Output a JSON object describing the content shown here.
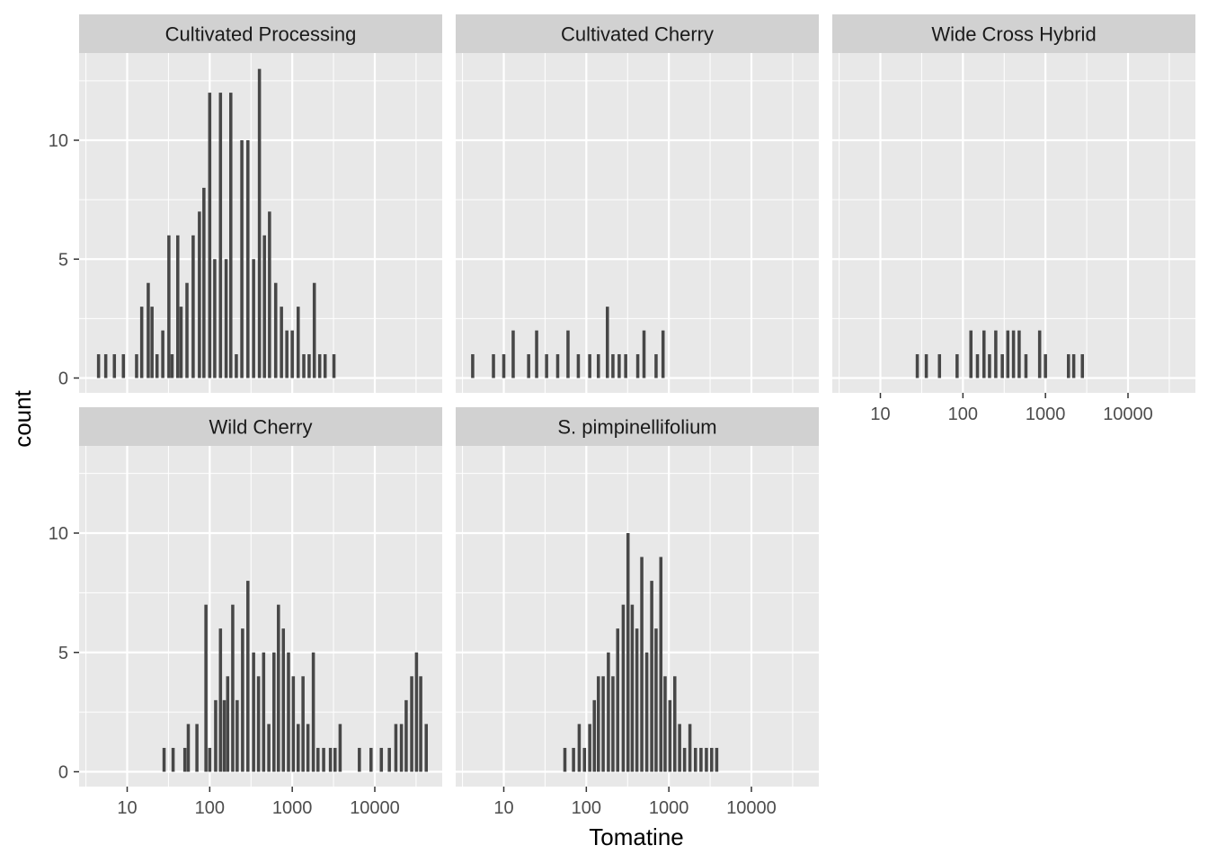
{
  "chart_data": {
    "type": "histogram",
    "layout": "facet_wrap",
    "xlabel": "Tomatine",
    "ylabel": "count",
    "x_scale": "log10",
    "x_ticks": [
      10,
      100,
      1000,
      10000
    ],
    "x_tick_labels": [
      "10",
      "100",
      "1000",
      "10000"
    ],
    "y_ticks": [
      0,
      5,
      10
    ],
    "y_tick_labels": [
      "0",
      "5",
      "10"
    ],
    "ylim": [
      0,
      13.5
    ],
    "bar_color": "#474747",
    "panel_background": "#e8e8e8",
    "strip_background": "#d1d1d1",
    "grid_color": "#ffffff",
    "panels": [
      {
        "name": "Cultivated Processing",
        "bins": [
          {
            "x": 4.5,
            "count": 1
          },
          {
            "x": 5.5,
            "count": 1
          },
          {
            "x": 7,
            "count": 1
          },
          {
            "x": 9,
            "count": 1
          },
          {
            "x": 13,
            "count": 1
          },
          {
            "x": 15,
            "count": 3
          },
          {
            "x": 18,
            "count": 4
          },
          {
            "x": 20,
            "count": 3
          },
          {
            "x": 23,
            "count": 1
          },
          {
            "x": 27,
            "count": 2
          },
          {
            "x": 32,
            "count": 6
          },
          {
            "x": 35,
            "count": 1
          },
          {
            "x": 41,
            "count": 6
          },
          {
            "x": 45,
            "count": 3
          },
          {
            "x": 53,
            "count": 4
          },
          {
            "x": 63,
            "count": 6
          },
          {
            "x": 75,
            "count": 7
          },
          {
            "x": 85,
            "count": 8
          },
          {
            "x": 100,
            "count": 12
          },
          {
            "x": 115,
            "count": 5
          },
          {
            "x": 135,
            "count": 12
          },
          {
            "x": 158,
            "count": 5
          },
          {
            "x": 180,
            "count": 12
          },
          {
            "x": 210,
            "count": 1
          },
          {
            "x": 245,
            "count": 10
          },
          {
            "x": 290,
            "count": 10
          },
          {
            "x": 340,
            "count": 5
          },
          {
            "x": 400,
            "count": 13
          },
          {
            "x": 460,
            "count": 6
          },
          {
            "x": 530,
            "count": 7
          },
          {
            "x": 630,
            "count": 4
          },
          {
            "x": 740,
            "count": 3
          },
          {
            "x": 860,
            "count": 2
          },
          {
            "x": 1000,
            "count": 2
          },
          {
            "x": 1180,
            "count": 3
          },
          {
            "x": 1380,
            "count": 1
          },
          {
            "x": 1600,
            "count": 1
          },
          {
            "x": 1850,
            "count": 4
          },
          {
            "x": 2150,
            "count": 1
          },
          {
            "x": 2500,
            "count": 1
          },
          {
            "x": 3200,
            "count": 1
          }
        ]
      },
      {
        "name": "Cultivated Cherry",
        "bins": [
          {
            "x": 4.2,
            "count": 1
          },
          {
            "x": 7.5,
            "count": 1
          },
          {
            "x": 10,
            "count": 1
          },
          {
            "x": 13,
            "count": 2
          },
          {
            "x": 20,
            "count": 1
          },
          {
            "x": 25,
            "count": 2
          },
          {
            "x": 33,
            "count": 1
          },
          {
            "x": 45,
            "count": 1
          },
          {
            "x": 60,
            "count": 2
          },
          {
            "x": 80,
            "count": 1
          },
          {
            "x": 110,
            "count": 1
          },
          {
            "x": 140,
            "count": 1
          },
          {
            "x": 180,
            "count": 3
          },
          {
            "x": 210,
            "count": 1
          },
          {
            "x": 250,
            "count": 1
          },
          {
            "x": 300,
            "count": 1
          },
          {
            "x": 420,
            "count": 1
          },
          {
            "x": 500,
            "count": 2
          },
          {
            "x": 700,
            "count": 1
          },
          {
            "x": 850,
            "count": 2
          }
        ]
      },
      {
        "name": "Wide Cross Hybrid",
        "bins": [
          {
            "x": 28,
            "count": 1
          },
          {
            "x": 36,
            "count": 1
          },
          {
            "x": 52,
            "count": 1
          },
          {
            "x": 85,
            "count": 1
          },
          {
            "x": 125,
            "count": 2
          },
          {
            "x": 150,
            "count": 1
          },
          {
            "x": 180,
            "count": 2
          },
          {
            "x": 210,
            "count": 1
          },
          {
            "x": 250,
            "count": 2
          },
          {
            "x": 300,
            "count": 1
          },
          {
            "x": 350,
            "count": 2
          },
          {
            "x": 410,
            "count": 2
          },
          {
            "x": 480,
            "count": 2
          },
          {
            "x": 580,
            "count": 1
          },
          {
            "x": 850,
            "count": 2
          },
          {
            "x": 1000,
            "count": 1
          },
          {
            "x": 1900,
            "count": 1
          },
          {
            "x": 2200,
            "count": 1
          },
          {
            "x": 2800,
            "count": 1
          }
        ]
      },
      {
        "name": "Wild Cherry",
        "bins": [
          {
            "x": 28,
            "count": 1
          },
          {
            "x": 36,
            "count": 1
          },
          {
            "x": 50,
            "count": 1
          },
          {
            "x": 55,
            "count": 2
          },
          {
            "x": 70,
            "count": 2
          },
          {
            "x": 90,
            "count": 7
          },
          {
            "x": 100,
            "count": 1
          },
          {
            "x": 118,
            "count": 3
          },
          {
            "x": 135,
            "count": 6
          },
          {
            "x": 150,
            "count": 3
          },
          {
            "x": 165,
            "count": 4
          },
          {
            "x": 190,
            "count": 7
          },
          {
            "x": 215,
            "count": 3
          },
          {
            "x": 250,
            "count": 6
          },
          {
            "x": 290,
            "count": 8
          },
          {
            "x": 340,
            "count": 5
          },
          {
            "x": 390,
            "count": 4
          },
          {
            "x": 450,
            "count": 5
          },
          {
            "x": 520,
            "count": 2
          },
          {
            "x": 600,
            "count": 5
          },
          {
            "x": 680,
            "count": 7
          },
          {
            "x": 780,
            "count": 6
          },
          {
            "x": 900,
            "count": 5
          },
          {
            "x": 1030,
            "count": 4
          },
          {
            "x": 1180,
            "count": 2
          },
          {
            "x": 1350,
            "count": 4
          },
          {
            "x": 1550,
            "count": 2
          },
          {
            "x": 1800,
            "count": 5
          },
          {
            "x": 2050,
            "count": 1
          },
          {
            "x": 2400,
            "count": 1
          },
          {
            "x": 2900,
            "count": 1
          },
          {
            "x": 3300,
            "count": 1
          },
          {
            "x": 3800,
            "count": 2
          },
          {
            "x": 6500,
            "count": 1
          },
          {
            "x": 9000,
            "count": 1
          },
          {
            "x": 12000,
            "count": 1
          },
          {
            "x": 15000,
            "count": 1
          },
          {
            "x": 18000,
            "count": 2
          },
          {
            "x": 21000,
            "count": 2
          },
          {
            "x": 24000,
            "count": 3
          },
          {
            "x": 28000,
            "count": 4
          },
          {
            "x": 32000,
            "count": 5
          },
          {
            "x": 36000,
            "count": 4
          },
          {
            "x": 42000,
            "count": 2
          }
        ]
      },
      {
        "name": "S. pimpinellifolium",
        "bins": [
          {
            "x": 55,
            "count": 1
          },
          {
            "x": 70,
            "count": 1
          },
          {
            "x": 82,
            "count": 2
          },
          {
            "x": 95,
            "count": 1
          },
          {
            "x": 110,
            "count": 2
          },
          {
            "x": 125,
            "count": 3
          },
          {
            "x": 140,
            "count": 4
          },
          {
            "x": 160,
            "count": 4
          },
          {
            "x": 185,
            "count": 5
          },
          {
            "x": 210,
            "count": 4
          },
          {
            "x": 240,
            "count": 6
          },
          {
            "x": 280,
            "count": 7
          },
          {
            "x": 320,
            "count": 10
          },
          {
            "x": 360,
            "count": 7
          },
          {
            "x": 410,
            "count": 6
          },
          {
            "x": 470,
            "count": 9
          },
          {
            "x": 540,
            "count": 5
          },
          {
            "x": 620,
            "count": 8
          },
          {
            "x": 700,
            "count": 6
          },
          {
            "x": 800,
            "count": 9
          },
          {
            "x": 900,
            "count": 4
          },
          {
            "x": 1030,
            "count": 3
          },
          {
            "x": 1180,
            "count": 4
          },
          {
            "x": 1350,
            "count": 2
          },
          {
            "x": 1550,
            "count": 1
          },
          {
            "x": 1800,
            "count": 2
          },
          {
            "x": 2100,
            "count": 1
          },
          {
            "x": 2450,
            "count": 1
          },
          {
            "x": 2850,
            "count": 1
          },
          {
            "x": 3300,
            "count": 1
          },
          {
            "x": 3800,
            "count": 1
          }
        ]
      }
    ]
  }
}
